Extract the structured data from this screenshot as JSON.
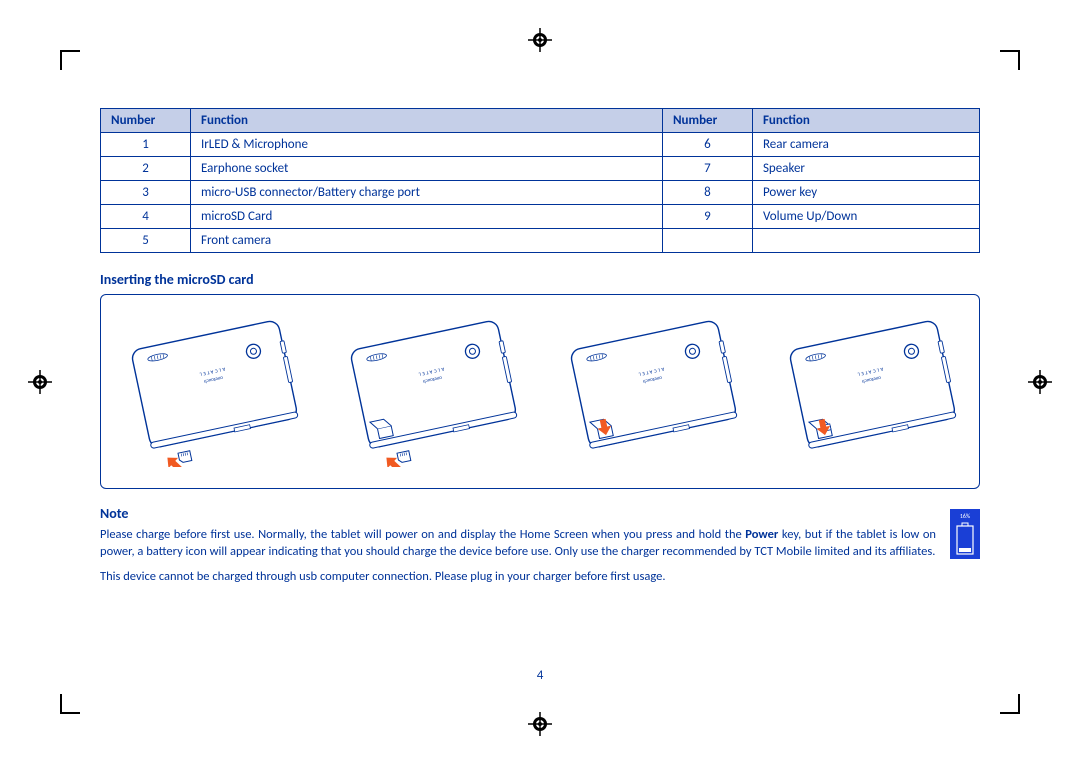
{
  "colors": {
    "ink": "#003399",
    "table_header_bg": "#c5cfe8",
    "battery_bg": "#1a3fd6",
    "arrow": "#f15a22",
    "page_bg": "#ffffff"
  },
  "parts_table": {
    "headers": {
      "number": "Number",
      "function": "Function"
    },
    "rows_left": [
      {
        "num": "1",
        "func": "IrLED & Microphone"
      },
      {
        "num": "2",
        "func": "Earphone socket"
      },
      {
        "num": "3",
        "func": "micro-USB connector/Battery charge port"
      },
      {
        "num": "4",
        "func": "microSD Card"
      },
      {
        "num": "5",
        "func": "Front camera"
      }
    ],
    "rows_right": [
      {
        "num": "6",
        "func": "Rear camera"
      },
      {
        "num": "7",
        "func": "Speaker"
      },
      {
        "num": "8",
        "func": "Power key"
      },
      {
        "num": "9",
        "func": "Volume Up/Down"
      },
      {
        "num": "",
        "func": ""
      }
    ]
  },
  "headings": {
    "inserting": "Inserting the microSD card",
    "note": "Note"
  },
  "note": {
    "p1_pre": "Please charge before first use. Normally, the tablet will power on and display the Home Screen when you press and hold the ",
    "p1_bold": "Power",
    "p1_post": " key, but if the tablet is low on power, a battery icon will appear indicating that you should charge the device before use. Only use the charger recommended by TCT Mobile limited and its affiliates.",
    "p2": "This device cannot be charged through usb computer connection. Please plug in your charger before first usage."
  },
  "battery": {
    "percent_label": "16%"
  },
  "page_number": "4",
  "diagrams": {
    "logo_line1": "ALCATEL",
    "logo_line2": "onetouch",
    "steps": [
      {
        "cover_state": "closed",
        "show_card": true,
        "show_arrow_up": true,
        "show_arrow_down": false
      },
      {
        "cover_state": "open",
        "show_card": true,
        "show_arrow_up": true,
        "show_arrow_down": false
      },
      {
        "cover_state": "open",
        "show_card": false,
        "show_arrow_up": false,
        "show_arrow_down": true
      },
      {
        "cover_state": "open_tab",
        "show_card": false,
        "show_arrow_up": false,
        "show_arrow_down": true
      }
    ]
  }
}
